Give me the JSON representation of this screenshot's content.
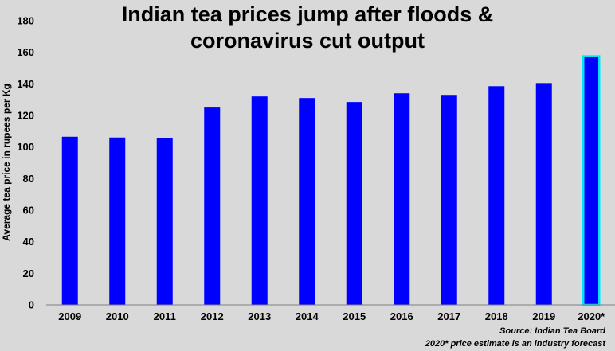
{
  "chart_data": {
    "type": "bar",
    "title_lines": [
      "Indian tea prices jump after floods &",
      "coronavirus cut output"
    ],
    "xlabel": "",
    "ylabel": "Average tea price in rupees per Kg",
    "categories": [
      "2009",
      "2010",
      "2011",
      "2012",
      "2013",
      "2014",
      "2015",
      "2016",
      "2017",
      "2018",
      "2019",
      "2020*"
    ],
    "values": [
      106.5,
      106,
      105.5,
      125,
      132,
      131,
      128.5,
      134,
      133,
      138.5,
      140.5,
      157.5
    ],
    "ylim": [
      0,
      180
    ],
    "yticks": [
      0,
      20,
      40,
      60,
      80,
      100,
      120,
      140,
      160,
      180
    ],
    "grid": false,
    "legend": "none",
    "bar_color": "#0000ff",
    "highlight_index": 11,
    "highlight_outline_color": "#00e5ff",
    "background_color": "#d9d9d9",
    "source_note": "Source: Indian Tea Board",
    "forecast_note": "2020* price estimate is an industry forecast"
  }
}
